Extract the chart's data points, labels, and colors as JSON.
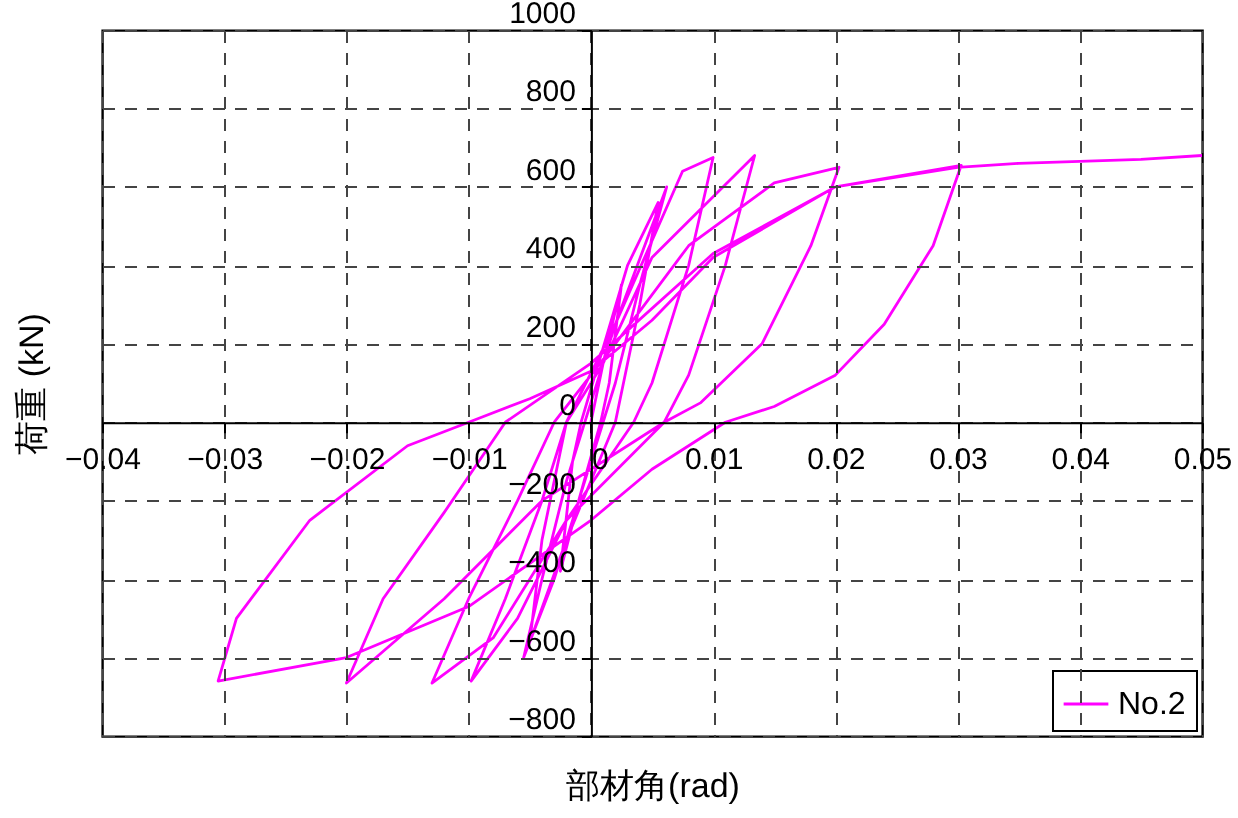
{
  "chart_data": {
    "type": "line",
    "xlabel": "部材角(rad)",
    "ylabel": "荷重 (kN)",
    "xlim": [
      -0.04,
      0.05
    ],
    "ylim": [
      -800,
      1000
    ],
    "xticks": [
      -0.04,
      -0.03,
      -0.02,
      -0.01,
      0,
      0.01,
      0.02,
      0.03,
      0.04,
      0.05
    ],
    "yticks": [
      -800,
      -600,
      -400,
      -200,
      0,
      200,
      400,
      600,
      800,
      1000
    ],
    "grid": true,
    "legend": "bottom right",
    "line_style": "solid",
    "marker": "none",
    "series": [
      {
        "name": "No.2",
        "color": "#ff00ff",
        "x": [
          0,
          0.001,
          0.0025,
          0.0015,
          0.0008,
          -0.001,
          -0.0025,
          -0.0015,
          -0.0008,
          0.003,
          0.0055,
          0.004,
          0.002,
          -0.002,
          -0.005,
          -0.004,
          -0.002,
          0.002,
          0.0062,
          0.004,
          0.002,
          0.0,
          -0.003,
          -0.0055,
          -0.004,
          -0.002,
          0.002,
          0.0075,
          0.01,
          0.008,
          0.005,
          0.0035,
          -0.002,
          -0.006,
          -0.0098,
          -0.007,
          -0.004,
          -0.002,
          0.001,
          0.005,
          0.0134,
          0.011,
          0.008,
          0.006,
          -0.002,
          -0.008,
          -0.013,
          -0.01,
          -0.006,
          -0.003,
          0.002,
          0.008,
          0.015,
          0.0203,
          0.018,
          0.014,
          0.009,
          0.006,
          -0.004,
          -0.012,
          -0.02,
          -0.017,
          -0.012,
          -0.007,
          0.0,
          0.01,
          0.02,
          0.0303,
          0.028,
          0.024,
          0.02,
          0.015,
          0.011,
          0.005,
          0.0,
          -0.01,
          -0.02,
          -0.0305,
          -0.029,
          -0.023,
          -0.015,
          -0.01,
          -0.005,
          0,
          0.005,
          0.01,
          0.02,
          0.03,
          0.035,
          0.04,
          0.045,
          0.05
        ],
        "values": [
          0,
          150,
          350,
          100,
          0,
          -200,
          -380,
          -100,
          0,
          400,
          560,
          300,
          0,
          -300,
          -560,
          -300,
          0,
          250,
          600,
          350,
          100,
          -100,
          -400,
          -600,
          -400,
          -150,
          250,
          640,
          675,
          400,
          100,
          0,
          -250,
          -500,
          -660,
          -450,
          -200,
          0,
          150,
          420,
          680,
          400,
          120,
          0,
          -250,
          -550,
          -665,
          -450,
          -200,
          0,
          200,
          450,
          610,
          650,
          450,
          200,
          50,
          0,
          -200,
          -450,
          -665,
          -450,
          -230,
          0,
          150,
          430,
          600,
          655,
          450,
          250,
          120,
          40,
          0,
          -120,
          -250,
          -470,
          -600,
          -660,
          -500,
          -250,
          -60,
          0,
          60,
          130,
          260,
          420,
          600,
          650,
          660,
          665,
          670,
          680
        ]
      }
    ]
  }
}
